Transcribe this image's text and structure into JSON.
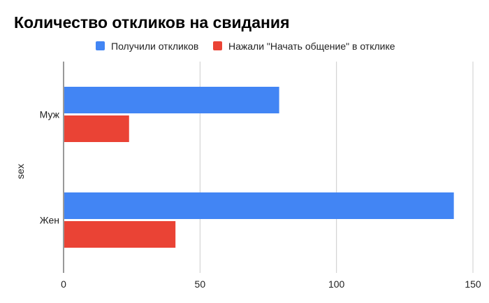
{
  "chart_data": {
    "type": "bar",
    "orientation": "horizontal",
    "title": "Количество откликов на свидания",
    "xlabel": "",
    "ylabel": "sex",
    "categories": [
      "Муж",
      "Жен"
    ],
    "series": [
      {
        "name": "Получили откликов",
        "color": "#4285f4",
        "values": [
          79,
          143
        ]
      },
      {
        "name": "Нажали \"Начать общение\" в отклике",
        "color": "#ea4335",
        "values": [
          24,
          41
        ]
      }
    ],
    "xlim": [
      0,
      150
    ],
    "xticks": [
      "0",
      "50",
      "100",
      "150"
    ],
    "grid": true,
    "legend": "top-center"
  }
}
